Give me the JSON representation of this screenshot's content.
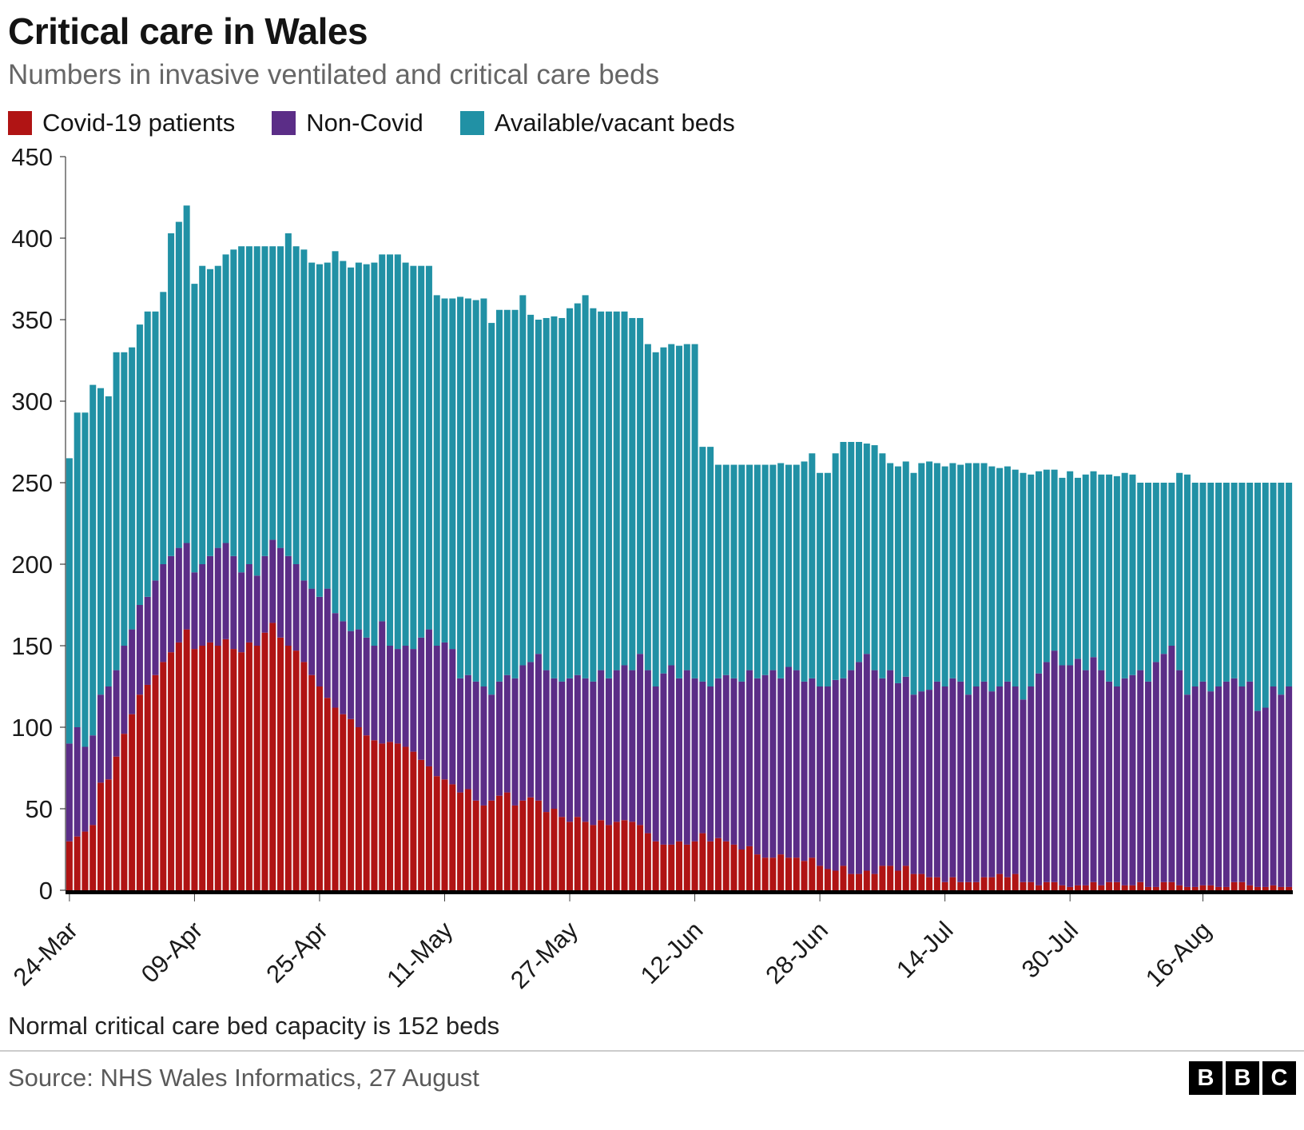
{
  "header": {
    "title": "Critical care in Wales",
    "subtitle": "Numbers in invasive ventilated and critical care beds"
  },
  "legend": [
    {
      "label": "Covid-19 patients",
      "color": "#b01414"
    },
    {
      "label": "Non-Covid",
      "color": "#5b2d87"
    },
    {
      "label": "Available/vacant beds",
      "color": "#2191a5"
    }
  ],
  "footnote": "Normal critical care bed capacity is 152 beds",
  "source": "Source: NHS Wales Informatics, 27 August",
  "logo": {
    "letters": [
      "B",
      "B",
      "C"
    ]
  },
  "chart_data": {
    "type": "bar",
    "stacked": true,
    "title": "Critical care in Wales",
    "subtitle": "Numbers in invasive ventilated and critical care beds",
    "xlabel": "",
    "ylabel": "",
    "ylim": [
      0,
      450
    ],
    "yticks": [
      0,
      50,
      100,
      150,
      200,
      250,
      300,
      350,
      400,
      450
    ],
    "grid": false,
    "legend_position": "top",
    "n_points": 157,
    "x_start": "24-Mar",
    "x_end": "27-Aug",
    "xticks": [
      {
        "index": 0,
        "label": "24-Mar"
      },
      {
        "index": 16,
        "label": "09-Apr"
      },
      {
        "index": 32,
        "label": "25-Apr"
      },
      {
        "index": 48,
        "label": "11-May"
      },
      {
        "index": 64,
        "label": "27-May"
      },
      {
        "index": 80,
        "label": "12-Jun"
      },
      {
        "index": 96,
        "label": "28-Jun"
      },
      {
        "index": 112,
        "label": "14-Jul"
      },
      {
        "index": 128,
        "label": "30-Jul"
      },
      {
        "index": 145,
        "label": "16-Aug"
      }
    ],
    "series": [
      {
        "name": "Covid-19 patients",
        "color": "#b01414",
        "values": [
          30,
          33,
          36,
          40,
          66,
          68,
          82,
          96,
          108,
          120,
          126,
          132,
          140,
          146,
          152,
          160,
          148,
          150,
          152,
          150,
          154,
          148,
          146,
          152,
          150,
          158,
          164,
          155,
          150,
          147,
          140,
          132,
          125,
          118,
          112,
          108,
          105,
          100,
          95,
          92,
          90,
          91,
          90,
          88,
          85,
          80,
          76,
          70,
          68,
          65,
          60,
          62,
          55,
          52,
          55,
          58,
          60,
          52,
          55,
          57,
          55,
          48,
          50,
          45,
          42,
          45,
          42,
          40,
          43,
          40,
          42,
          43,
          42,
          40,
          35,
          30,
          28,
          28,
          30,
          28,
          30,
          35,
          30,
          32,
          30,
          28,
          25,
          27,
          22,
          20,
          20,
          22,
          20,
          20,
          18,
          20,
          15,
          13,
          12,
          15,
          10,
          10,
          12,
          10,
          15,
          15,
          12,
          15,
          10,
          10,
          8,
          8,
          5,
          8,
          5,
          5,
          5,
          8,
          8,
          10,
          8,
          10,
          5,
          5,
          3,
          5,
          5,
          3,
          2,
          3,
          3,
          5,
          3,
          5,
          5,
          3,
          3,
          5,
          2,
          2,
          5,
          5,
          3,
          2,
          2,
          3,
          3,
          2,
          2,
          5,
          5,
          3,
          2,
          2,
          3,
          2,
          2
        ]
      },
      {
        "name": "Non-Covid",
        "color": "#5b2d87",
        "values": [
          60,
          67,
          52,
          55,
          54,
          57,
          53,
          54,
          52,
          55,
          54,
          58,
          60,
          59,
          58,
          53,
          47,
          50,
          53,
          60,
          59,
          57,
          49,
          48,
          43,
          47,
          51,
          55,
          55,
          53,
          50,
          53,
          55,
          67,
          58,
          57,
          54,
          60,
          60,
          58,
          75,
          59,
          58,
          62,
          63,
          75,
          84,
          80,
          84,
          83,
          70,
          70,
          73,
          73,
          65,
          70,
          72,
          78,
          83,
          83,
          90,
          87,
          80,
          83,
          88,
          87,
          88,
          88,
          92,
          90,
          93,
          95,
          93,
          105,
          100,
          95,
          105,
          110,
          100,
          107,
          100,
          93,
          95,
          98,
          102,
          102,
          103,
          108,
          108,
          112,
          115,
          108,
          117,
          115,
          110,
          110,
          110,
          112,
          117,
          115,
          125,
          130,
          133,
          125,
          115,
          120,
          115,
          116,
          110,
          112,
          115,
          120,
          120,
          122,
          123,
          115,
          120,
          120,
          114,
          115,
          120,
          115,
          112,
          120,
          130,
          135,
          142,
          135,
          136,
          139,
          132,
          138,
          132,
          123,
          120,
          127,
          129,
          130,
          126,
          138,
          140,
          145,
          132,
          118,
          123,
          125,
          119,
          123,
          126,
          125,
          120,
          125,
          108,
          110,
          122,
          118,
          123
        ]
      },
      {
        "name": "Available/vacant beds",
        "color": "#2191a5",
        "values": [
          175,
          193,
          205,
          215,
          188,
          178,
          195,
          180,
          173,
          172,
          175,
          165,
          167,
          198,
          200,
          207,
          177,
          183,
          176,
          173,
          177,
          188,
          200,
          195,
          202,
          190,
          180,
          185,
          198,
          195,
          203,
          200,
          204,
          200,
          222,
          221,
          223,
          225,
          229,
          235,
          225,
          240,
          242,
          235,
          235,
          228,
          223,
          215,
          211,
          215,
          234,
          231,
          234,
          238,
          228,
          228,
          224,
          226,
          227,
          213,
          205,
          216,
          222,
          223,
          227,
          228,
          235,
          229,
          220,
          225,
          220,
          217,
          216,
          206,
          200,
          205,
          200,
          197,
          204,
          200,
          205,
          144,
          147,
          131,
          129,
          131,
          133,
          126,
          131,
          129,
          126,
          132,
          124,
          126,
          135,
          138,
          131,
          131,
          139,
          145,
          140,
          135,
          129,
          138,
          138,
          127,
          133,
          132,
          136,
          140,
          140,
          134,
          135,
          132,
          133,
          142,
          137,
          134,
          138,
          134,
          132,
          133,
          139,
          130,
          124,
          118,
          111,
          115,
          119,
          111,
          120,
          114,
          120,
          127,
          129,
          126,
          123,
          115,
          122,
          110,
          105,
          100,
          121,
          135,
          125,
          122,
          128,
          125,
          122,
          120,
          125,
          122,
          140,
          138,
          125,
          130,
          125
        ]
      }
    ]
  }
}
